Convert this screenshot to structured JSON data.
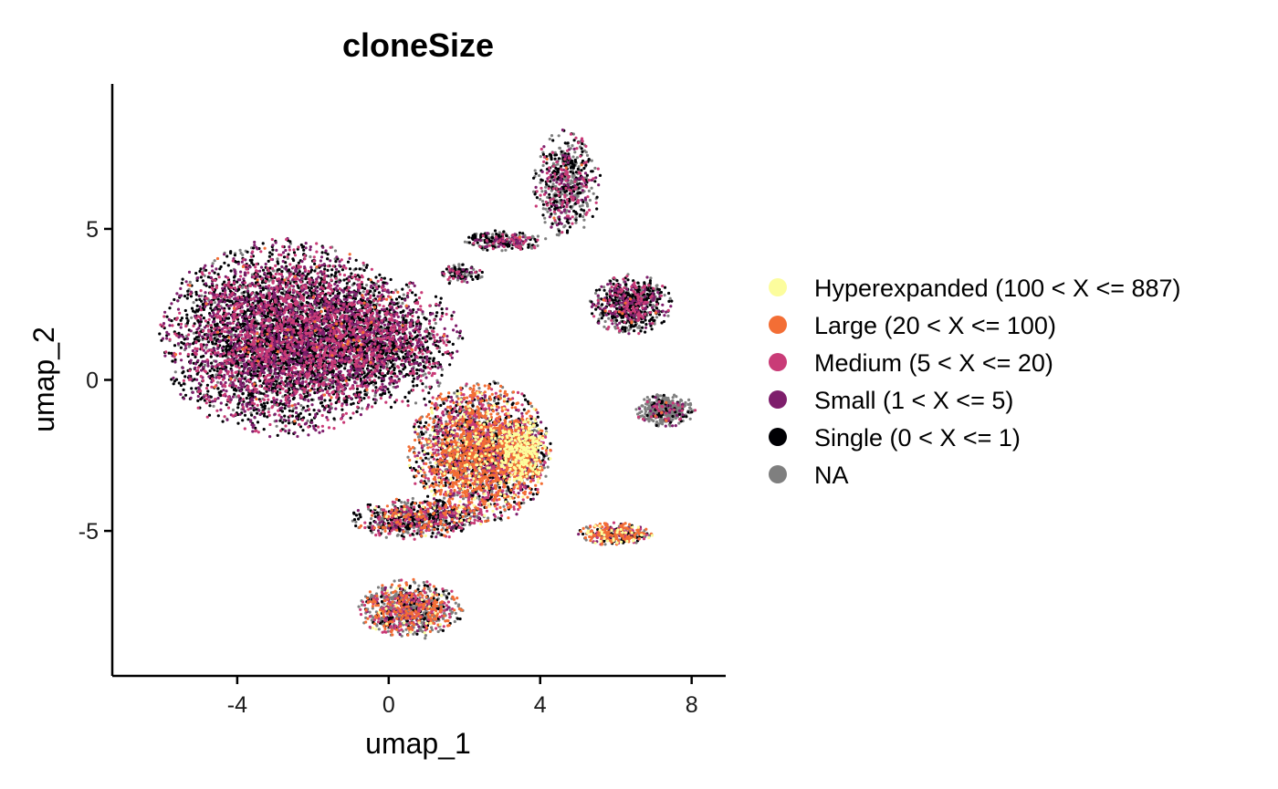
{
  "chart_data": {
    "type": "scatter",
    "title": "cloneSize",
    "xlabel": "umap_1",
    "ylabel": "umap_2",
    "xlim": [
      -7.3,
      8.9
    ],
    "ylim": [
      -9.8,
      9.8
    ],
    "xticks": [
      -4,
      0,
      4,
      8
    ],
    "xtick_labels": [
      "-4",
      "0",
      "4",
      "8"
    ],
    "yticks": [
      -5,
      0,
      5
    ],
    "ytick_labels": [
      "-5",
      "0",
      "5"
    ],
    "grid": false,
    "legend_position": "right",
    "series": [
      {
        "name": "Hyperexpanded (100 < X <= 887)",
        "color": "#FCFD9D"
      },
      {
        "name": "Large (20 < X <= 100)",
        "color": "#F36E35"
      },
      {
        "name": "Medium (5 < X <= 20)",
        "color": "#C93B77"
      },
      {
        "name": "Small (1 < X <= 5)",
        "color": "#7E1E6C"
      },
      {
        "name": "Single (0 < X <= 1)",
        "color": "#000004"
      },
      {
        "name": "NA",
        "color": "#7F7F7F"
      }
    ],
    "clusters": [
      {
        "cx": -2.8,
        "cy": 1.4,
        "rx": 3.3,
        "ry": 3.3,
        "n": 5200,
        "mix": [
          0,
          0.01,
          0.2,
          0.24,
          0.43,
          0.12
        ]
      },
      {
        "cx": -0.3,
        "cy": 1.2,
        "rx": 2.3,
        "ry": 2.2,
        "n": 1600,
        "mix": [
          0,
          0.01,
          0.2,
          0.24,
          0.43,
          0.12
        ]
      },
      {
        "cx": 2.4,
        "cy": -2.4,
        "rx": 1.9,
        "ry": 2.4,
        "n": 2800,
        "mix": [
          0.07,
          0.3,
          0.2,
          0.08,
          0.2,
          0.15
        ]
      },
      {
        "cx": 3.5,
        "cy": -2.4,
        "rx": 0.7,
        "ry": 1.2,
        "n": 700,
        "mix": [
          0.35,
          0.3,
          0.12,
          0.03,
          0.1,
          0.1
        ]
      },
      {
        "cx": 0.8,
        "cy": -4.6,
        "rx": 1.8,
        "ry": 0.7,
        "n": 800,
        "mix": [
          0.02,
          0.12,
          0.18,
          0.08,
          0.3,
          0.3
        ]
      },
      {
        "cx": 0.6,
        "cy": -7.6,
        "rx": 1.4,
        "ry": 1.0,
        "n": 900,
        "mix": [
          0.02,
          0.2,
          0.18,
          0.05,
          0.15,
          0.4
        ]
      },
      {
        "cx": 4.7,
        "cy": 6.5,
        "rx": 0.9,
        "ry": 1.8,
        "n": 600,
        "mix": [
          0,
          0.01,
          0.15,
          0.12,
          0.32,
          0.4
        ]
      },
      {
        "cx": 3.1,
        "cy": 4.6,
        "rx": 1.1,
        "ry": 0.35,
        "n": 250,
        "mix": [
          0,
          0.01,
          0.15,
          0.15,
          0.35,
          0.34
        ]
      },
      {
        "cx": 1.9,
        "cy": 3.5,
        "rx": 0.6,
        "ry": 0.35,
        "n": 120,
        "mix": [
          0,
          0.02,
          0.15,
          0.12,
          0.35,
          0.36
        ]
      },
      {
        "cx": 6.4,
        "cy": 2.5,
        "rx": 1.1,
        "ry": 1.0,
        "n": 700,
        "mix": [
          0,
          0.01,
          0.15,
          0.15,
          0.45,
          0.24
        ]
      },
      {
        "cx": 7.3,
        "cy": -1.0,
        "rx": 0.8,
        "ry": 0.55,
        "n": 400,
        "mix": [
          0,
          0.01,
          0.05,
          0.05,
          0.1,
          0.79
        ]
      },
      {
        "cx": 6.0,
        "cy": -5.1,
        "rx": 1.0,
        "ry": 0.4,
        "n": 350,
        "mix": [
          0.1,
          0.3,
          0.15,
          0.05,
          0.2,
          0.2
        ]
      }
    ]
  }
}
